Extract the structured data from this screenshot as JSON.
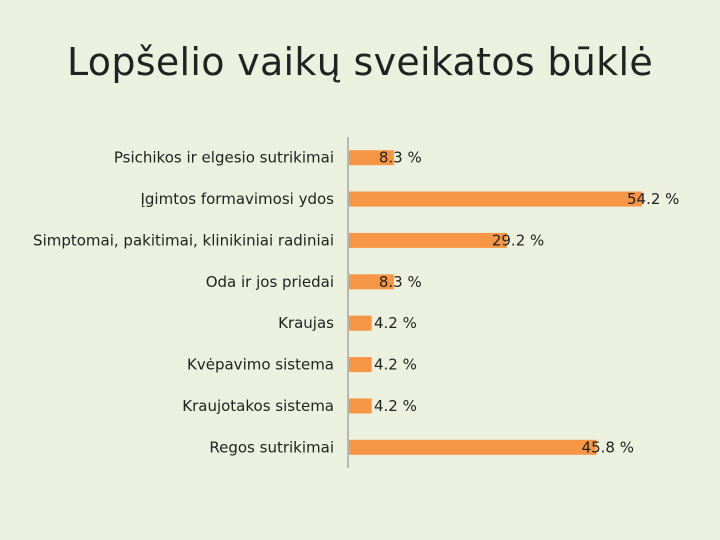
{
  "chart_data": {
    "type": "bar",
    "orientation": "horizontal",
    "title": "Lopšelio vaikų sveikatos būklė",
    "categories": [
      "Psichikos ir elgesio sutrikimai",
      "Įgimtos formavimosi ydos",
      "Simptomai, pakitimai, klinikiniai radiniai",
      "Oda ir jos priedai",
      "Kraujas",
      "Kvėpavimo sistema",
      "Kraujotakos sistema",
      "Regos sutrikimai"
    ],
    "values": [
      8.3,
      54.2,
      29.2,
      8.3,
      4.2,
      4.2,
      4.2,
      45.8
    ],
    "value_labels": [
      "8.3 %",
      "54.2 %",
      "29.2 %",
      "8.3 %",
      "4.2 %",
      "4.2 %",
      "4.2 %",
      "45.8 %"
    ],
    "xlim": [
      0,
      57
    ],
    "bar_color": "#f79646",
    "axis_color": "#a6a6a6",
    "grid": false,
    "legend": false
  }
}
